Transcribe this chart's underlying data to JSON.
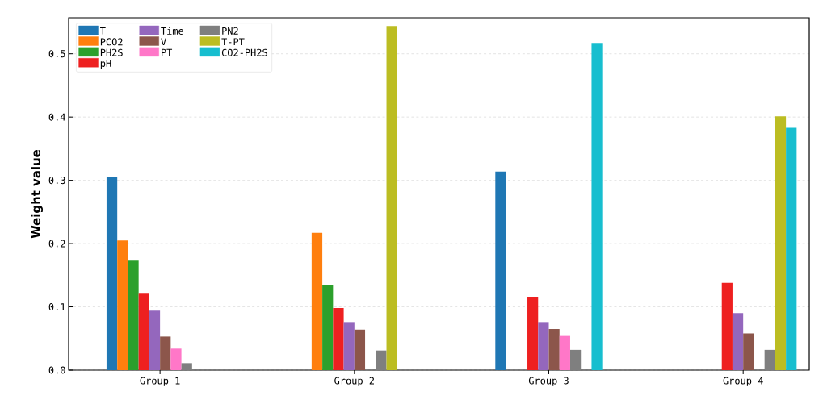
{
  "chart_data": {
    "type": "bar",
    "ylabel": "Weight value",
    "categories": [
      "Group 1",
      "Group 2",
      "Group 3",
      "Group 4"
    ],
    "series": [
      {
        "name": "T",
        "color": "#1f77b4",
        "values": [
          0.305,
          null,
          0.314,
          null
        ]
      },
      {
        "name": "PCO2",
        "color": "#ff7f0e",
        "values": [
          0.205,
          0.217,
          null,
          null
        ]
      },
      {
        "name": "PH2S",
        "color": "#2ca02c",
        "values": [
          0.173,
          0.134,
          null,
          null
        ]
      },
      {
        "name": "pH",
        "color": "#ee2020",
        "values": [
          0.122,
          0.098,
          0.116,
          0.138
        ]
      },
      {
        "name": "Time",
        "color": "#9467bd",
        "values": [
          0.094,
          0.076,
          0.076,
          0.09
        ]
      },
      {
        "name": "V",
        "color": "#8c564b",
        "values": [
          0.053,
          0.064,
          0.065,
          0.058
        ]
      },
      {
        "name": "PT",
        "color": "#ff77c8",
        "values": [
          0.034,
          null,
          0.054,
          null
        ]
      },
      {
        "name": "PN2",
        "color": "#7f7f7f",
        "values": [
          0.011,
          0.031,
          0.032,
          0.032
        ]
      },
      {
        "name": "T-PT",
        "color": "#bcbd22",
        "values": [
          null,
          0.544,
          null,
          0.401
        ]
      },
      {
        "name": "CO2-PH2S",
        "color": "#17becf",
        "values": [
          null,
          null,
          0.517,
          0.383
        ]
      }
    ],
    "ylim": [
      0,
      0.557
    ],
    "yticks": [
      {
        "value": 0,
        "label": "0.0"
      },
      {
        "value": 0.1,
        "label": "0.1"
      },
      {
        "value": 0.2,
        "label": "0.2"
      },
      {
        "value": 0.3,
        "label": "0.3"
      },
      {
        "value": 0.4,
        "label": "0.4"
      },
      {
        "value": 0.5,
        "label": "0.5"
      }
    ],
    "grid": "y",
    "legend": "top left"
  }
}
